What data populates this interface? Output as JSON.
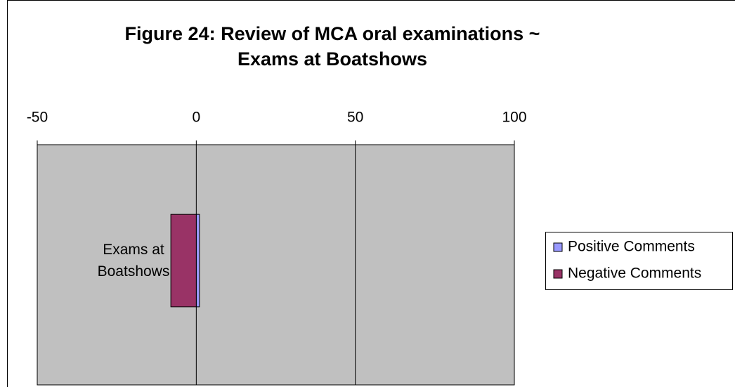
{
  "chart_data": {
    "type": "hbar",
    "title": "Figure 24: Review of MCA oral examinations ~ Exams at Boatshows",
    "categories": [
      "Exams at Boatshows"
    ],
    "series": [
      {
        "name": "Positive Comments",
        "color": "#9999ff",
        "values": [
          1
        ]
      },
      {
        "name": "Negative Comments",
        "color": "#993366",
        "values": [
          -8
        ]
      }
    ],
    "xlim": [
      -50,
      100
    ],
    "xticks": [
      -50,
      0,
      50,
      100
    ],
    "grid": true,
    "plot_background": "#c0c0c0",
    "legend": "right"
  }
}
